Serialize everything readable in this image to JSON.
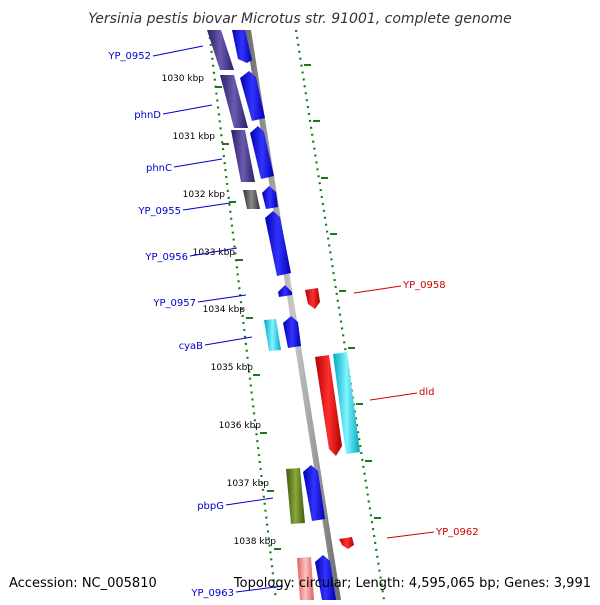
{
  "title": "Yersinia pestis biovar Microtus str. 91001, complete genome",
  "footer": {
    "accession": "Accession: NC_005810",
    "topology": "Topology: circular; Length: 4,595,065 bp; Genes: 3,991"
  },
  "colors": {
    "backbone": "#8c8c8c",
    "dots": "#1a7a1a",
    "label_forward": "#0000cc",
    "label_reverse": "#cc0000",
    "gene_blue": "#0000ee",
    "gene_navy": "#3f2f86",
    "gene_gray": "#555555",
    "gene_cyan": "#00d4e8",
    "gene_red": "#ee0000",
    "gene_olive": "#5a7a18",
    "gene_pink": "#ee8888"
  },
  "kbp_ticks": [
    "1030 kbp",
    "1031 kbp",
    "1032 kbp",
    "1033 kbp",
    "1034 kbp",
    "1035 kbp",
    "1036 kbp",
    "1037 kbp",
    "1038 kbp"
  ],
  "gene_labels": {
    "forward": [
      "YP_0952",
      "phnD",
      "phnC",
      "YP_0955",
      "YP_0956",
      "YP_0957",
      "cyaB",
      "pbpG",
      "YP_0963"
    ],
    "reverse": [
      "YP_0958",
      "dld",
      "YP_0962"
    ]
  }
}
